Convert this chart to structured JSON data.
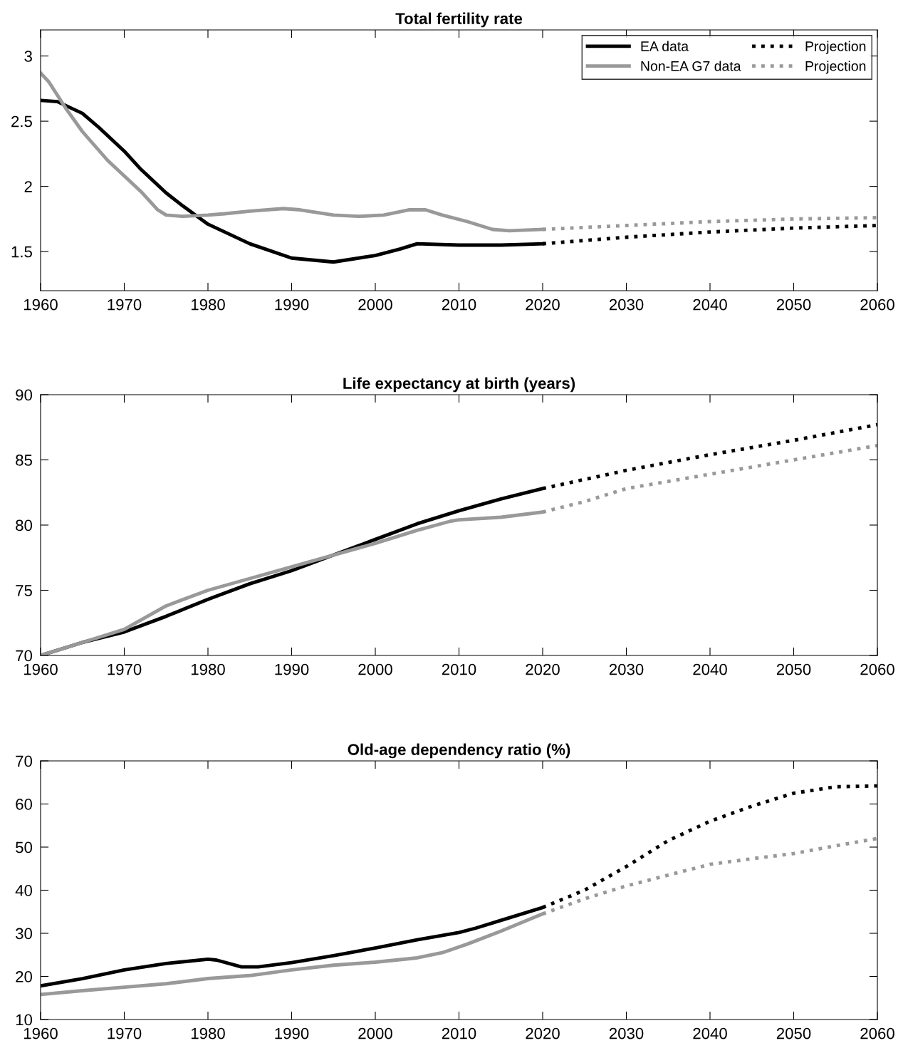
{
  "chart_data": [
    {
      "type": "line",
      "title": "Total fertility rate",
      "xlim": [
        1960,
        2060
      ],
      "xticks": [
        1960,
        1970,
        1980,
        1990,
        2000,
        2010,
        2020,
        2030,
        2040,
        2050,
        2060
      ],
      "ylim": [
        1.2,
        3.2
      ],
      "yticks": [
        1.5,
        2,
        2.5,
        3
      ],
      "grid": false,
      "legend": "top right",
      "series": [
        {
          "name": "EA data",
          "color": "#000000",
          "line_style": "solid",
          "x": [
            1960,
            1962,
            1965,
            1967,
            1970,
            1972,
            1975,
            1977,
            1980,
            1985,
            1990,
            1995,
            2000,
            2003,
            2005,
            2010,
            2015,
            2020
          ],
          "values": [
            2.66,
            2.65,
            2.56,
            2.45,
            2.27,
            2.13,
            1.95,
            1.85,
            1.71,
            1.56,
            1.45,
            1.42,
            1.47,
            1.52,
            1.56,
            1.55,
            1.55,
            1.56
          ]
        },
        {
          "name": "Non-EA G7 data",
          "color": "#999999",
          "line_style": "solid",
          "x": [
            1960,
            1961,
            1963,
            1965,
            1968,
            1970,
            1972,
            1974,
            1975,
            1977,
            1980,
            1982,
            1985,
            1989,
            1991,
            1995,
            1998,
            2001,
            2004,
            2006,
            2008,
            2011,
            2014,
            2016,
            2020
          ],
          "values": [
            2.87,
            2.8,
            2.6,
            2.42,
            2.2,
            2.08,
            1.96,
            1.82,
            1.78,
            1.77,
            1.78,
            1.79,
            1.81,
            1.83,
            1.82,
            1.78,
            1.77,
            1.78,
            1.82,
            1.82,
            1.78,
            1.73,
            1.67,
            1.66,
            1.67
          ]
        },
        {
          "name": "Projection",
          "color": "#000000",
          "line_style": "dotted",
          "x": [
            2020,
            2030,
            2040,
            2050,
            2060
          ],
          "values": [
            1.56,
            1.61,
            1.65,
            1.68,
            1.7
          ]
        },
        {
          "name": "Projection",
          "color": "#999999",
          "line_style": "dotted",
          "x": [
            2020,
            2030,
            2040,
            2050,
            2060
          ],
          "values": [
            1.67,
            1.7,
            1.73,
            1.75,
            1.76
          ]
        }
      ]
    },
    {
      "type": "line",
      "title": "Life expectancy at birth (years)",
      "xlim": [
        1960,
        2060
      ],
      "xticks": [
        1960,
        1970,
        1980,
        1990,
        2000,
        2010,
        2020,
        2030,
        2040,
        2050,
        2060
      ],
      "ylim": [
        70,
        90
      ],
      "yticks": [
        70,
        75,
        80,
        85,
        90
      ],
      "grid": false,
      "series": [
        {
          "color": "#000000",
          "line_style": "solid",
          "x": [
            1960,
            1965,
            1970,
            1975,
            1980,
            1985,
            1990,
            1995,
            2000,
            2005,
            2010,
            2015,
            2020
          ],
          "values": [
            70,
            71,
            71.8,
            73,
            74.3,
            75.5,
            76.5,
            77.7,
            78.9,
            80.1,
            81.1,
            82,
            82.8
          ]
        },
        {
          "color": "#999999",
          "line_style": "solid",
          "x": [
            1960,
            1965,
            1970,
            1975,
            1980,
            1985,
            1990,
            1995,
            2000,
            2005,
            2009,
            2010,
            2015,
            2020
          ],
          "values": [
            70,
            71,
            72,
            73.8,
            75,
            75.9,
            76.8,
            77.7,
            78.6,
            79.6,
            80.3,
            80.4,
            80.6,
            81
          ]
        },
        {
          "color": "#000000",
          "line_style": "dotted",
          "x": [
            2020,
            2030,
            2040,
            2050,
            2060
          ],
          "values": [
            82.8,
            84.2,
            85.4,
            86.5,
            87.7
          ]
        },
        {
          "color": "#999999",
          "line_style": "dotted",
          "x": [
            2020,
            2025,
            2030,
            2040,
            2050,
            2060
          ],
          "values": [
            81,
            81.8,
            82.8,
            83.9,
            85,
            86.1
          ]
        }
      ]
    },
    {
      "type": "line",
      "title": "Old-age dependency ratio (%)",
      "xlim": [
        1960,
        2060
      ],
      "xticks": [
        1960,
        1970,
        1980,
        1990,
        2000,
        2010,
        2020,
        2030,
        2040,
        2050,
        2060
      ],
      "ylim": [
        10,
        70
      ],
      "yticks": [
        10,
        20,
        30,
        40,
        50,
        60,
        70
      ],
      "grid": false,
      "series": [
        {
          "color": "#000000",
          "line_style": "solid",
          "x": [
            1960,
            1965,
            1970,
            1975,
            1980,
            1981,
            1984,
            1986,
            1990,
            1995,
            2000,
            2005,
            2010,
            2012,
            2015,
            2020
          ],
          "values": [
            17.8,
            19.5,
            21.5,
            23,
            24,
            23.8,
            22.2,
            22.2,
            23.2,
            24.8,
            26.6,
            28.5,
            30.2,
            31.2,
            33,
            36
          ]
        },
        {
          "color": "#999999",
          "line_style": "solid",
          "x": [
            1960,
            1965,
            1970,
            1975,
            1980,
            1985,
            1990,
            1995,
            2000,
            2005,
            2008,
            2011,
            2015,
            2020
          ],
          "values": [
            15.8,
            16.7,
            17.5,
            18.3,
            19.5,
            20.2,
            21.5,
            22.6,
            23.3,
            24.3,
            25.5,
            27.5,
            30.5,
            34.5
          ]
        },
        {
          "color": "#000000",
          "line_style": "dotted",
          "x": [
            2020,
            2025,
            2030,
            2035,
            2040,
            2045,
            2050,
            2055,
            2060
          ],
          "values": [
            36,
            40,
            45.5,
            51.5,
            56,
            59.5,
            62.5,
            64,
            64.2
          ]
        },
        {
          "color": "#999999",
          "line_style": "dotted",
          "x": [
            2020,
            2025,
            2030,
            2035,
            2040,
            2045,
            2050,
            2055,
            2060
          ],
          "values": [
            34.5,
            38,
            41,
            43.5,
            46,
            47.3,
            48.5,
            50.3,
            52
          ]
        }
      ]
    }
  ]
}
